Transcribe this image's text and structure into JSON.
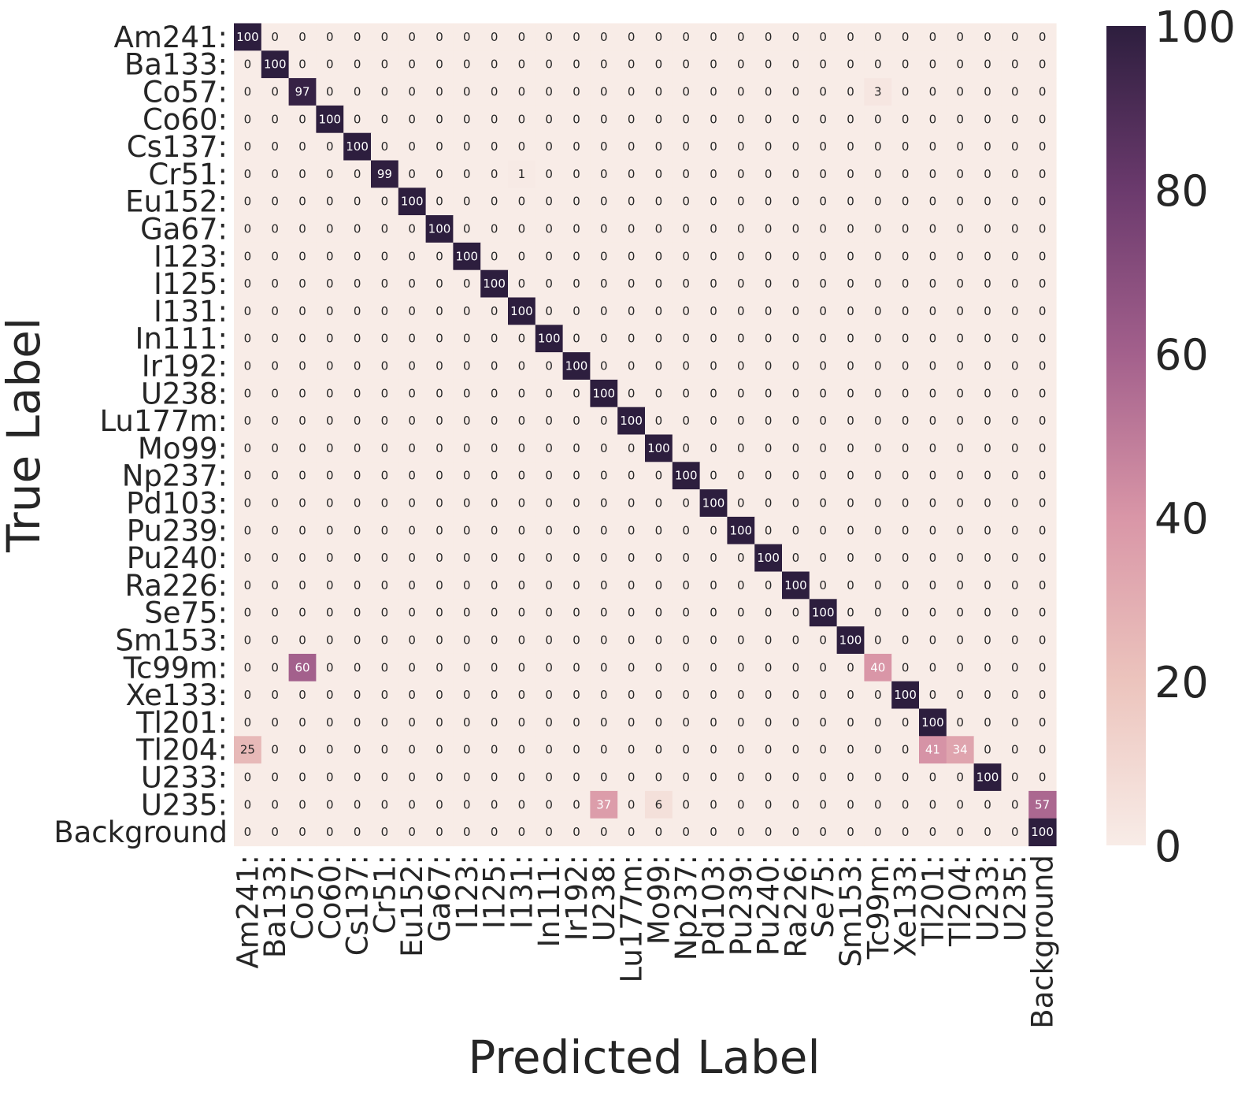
{
  "chart_data": {
    "type": "heatmap",
    "xlabel": "Predicted Label",
    "ylabel": "True Label",
    "row_labels": [
      "Am241:",
      "Ba133:",
      "Co57:",
      "Co60:",
      "Cs137:",
      "Cr51:",
      "Eu152:",
      "Ga67:",
      "I123:",
      "I125:",
      "I131:",
      "In111:",
      "Ir192:",
      "U238:",
      "Lu177m:",
      "Mo99:",
      "Np237:",
      "Pd103:",
      "Pu239:",
      "Pu240:",
      "Ra226:",
      "Se75:",
      "Sm153:",
      "Tc99m:",
      "Xe133:",
      "Tl201:",
      "Tl204:",
      "U233:",
      "U235:",
      "Background"
    ],
    "col_labels": [
      "Am241:",
      "Ba133:",
      "Co57:",
      "Co60:",
      "Cs137:",
      "Cr51:",
      "Eu152:",
      "Ga67:",
      "I123:",
      "I125:",
      "I131:",
      "In111:",
      "Ir192:",
      "U238:",
      "Lu177m:",
      "Mo99:",
      "Np237:",
      "Pd103:",
      "Pu239:",
      "Pu240:",
      "Ra226:",
      "Se75:",
      "Sm153:",
      "Tc99m:",
      "Xe133:",
      "Tl201:",
      "Tl204:",
      "U233:",
      "U235:",
      "Background"
    ],
    "values": [
      [
        100,
        0,
        0,
        0,
        0,
        0,
        0,
        0,
        0,
        0,
        0,
        0,
        0,
        0,
        0,
        0,
        0,
        0,
        0,
        0,
        0,
        0,
        0,
        0,
        0,
        0,
        0,
        0,
        0,
        0
      ],
      [
        0,
        100,
        0,
        0,
        0,
        0,
        0,
        0,
        0,
        0,
        0,
        0,
        0,
        0,
        0,
        0,
        0,
        0,
        0,
        0,
        0,
        0,
        0,
        0,
        0,
        0,
        0,
        0,
        0,
        0
      ],
      [
        0,
        0,
        97,
        0,
        0,
        0,
        0,
        0,
        0,
        0,
        0,
        0,
        0,
        0,
        0,
        0,
        0,
        0,
        0,
        0,
        0,
        0,
        0,
        3,
        0,
        0,
        0,
        0,
        0,
        0
      ],
      [
        0,
        0,
        0,
        100,
        0,
        0,
        0,
        0,
        0,
        0,
        0,
        0,
        0,
        0,
        0,
        0,
        0,
        0,
        0,
        0,
        0,
        0,
        0,
        0,
        0,
        0,
        0,
        0,
        0,
        0
      ],
      [
        0,
        0,
        0,
        0,
        100,
        0,
        0,
        0,
        0,
        0,
        0,
        0,
        0,
        0,
        0,
        0,
        0,
        0,
        0,
        0,
        0,
        0,
        0,
        0,
        0,
        0,
        0,
        0,
        0,
        0
      ],
      [
        0,
        0,
        0,
        0,
        0,
        99,
        0,
        0,
        0,
        0,
        1,
        0,
        0,
        0,
        0,
        0,
        0,
        0,
        0,
        0,
        0,
        0,
        0,
        0,
        0,
        0,
        0,
        0,
        0,
        0
      ],
      [
        0,
        0,
        0,
        0,
        0,
        0,
        100,
        0,
        0,
        0,
        0,
        0,
        0,
        0,
        0,
        0,
        0,
        0,
        0,
        0,
        0,
        0,
        0,
        0,
        0,
        0,
        0,
        0,
        0,
        0
      ],
      [
        0,
        0,
        0,
        0,
        0,
        0,
        0,
        100,
        0,
        0,
        0,
        0,
        0,
        0,
        0,
        0,
        0,
        0,
        0,
        0,
        0,
        0,
        0,
        0,
        0,
        0,
        0,
        0,
        0,
        0
      ],
      [
        0,
        0,
        0,
        0,
        0,
        0,
        0,
        0,
        100,
        0,
        0,
        0,
        0,
        0,
        0,
        0,
        0,
        0,
        0,
        0,
        0,
        0,
        0,
        0,
        0,
        0,
        0,
        0,
        0,
        0
      ],
      [
        0,
        0,
        0,
        0,
        0,
        0,
        0,
        0,
        0,
        100,
        0,
        0,
        0,
        0,
        0,
        0,
        0,
        0,
        0,
        0,
        0,
        0,
        0,
        0,
        0,
        0,
        0,
        0,
        0,
        0
      ],
      [
        0,
        0,
        0,
        0,
        0,
        0,
        0,
        0,
        0,
        0,
        100,
        0,
        0,
        0,
        0,
        0,
        0,
        0,
        0,
        0,
        0,
        0,
        0,
        0,
        0,
        0,
        0,
        0,
        0,
        0
      ],
      [
        0,
        0,
        0,
        0,
        0,
        0,
        0,
        0,
        0,
        0,
        0,
        100,
        0,
        0,
        0,
        0,
        0,
        0,
        0,
        0,
        0,
        0,
        0,
        0,
        0,
        0,
        0,
        0,
        0,
        0
      ],
      [
        0,
        0,
        0,
        0,
        0,
        0,
        0,
        0,
        0,
        0,
        0,
        0,
        100,
        0,
        0,
        0,
        0,
        0,
        0,
        0,
        0,
        0,
        0,
        0,
        0,
        0,
        0,
        0,
        0,
        0
      ],
      [
        0,
        0,
        0,
        0,
        0,
        0,
        0,
        0,
        0,
        0,
        0,
        0,
        0,
        100,
        0,
        0,
        0,
        0,
        0,
        0,
        0,
        0,
        0,
        0,
        0,
        0,
        0,
        0,
        0,
        0
      ],
      [
        0,
        0,
        0,
        0,
        0,
        0,
        0,
        0,
        0,
        0,
        0,
        0,
        0,
        0,
        100,
        0,
        0,
        0,
        0,
        0,
        0,
        0,
        0,
        0,
        0,
        0,
        0,
        0,
        0,
        0
      ],
      [
        0,
        0,
        0,
        0,
        0,
        0,
        0,
        0,
        0,
        0,
        0,
        0,
        0,
        0,
        0,
        100,
        0,
        0,
        0,
        0,
        0,
        0,
        0,
        0,
        0,
        0,
        0,
        0,
        0,
        0
      ],
      [
        0,
        0,
        0,
        0,
        0,
        0,
        0,
        0,
        0,
        0,
        0,
        0,
        0,
        0,
        0,
        0,
        100,
        0,
        0,
        0,
        0,
        0,
        0,
        0,
        0,
        0,
        0,
        0,
        0,
        0
      ],
      [
        0,
        0,
        0,
        0,
        0,
        0,
        0,
        0,
        0,
        0,
        0,
        0,
        0,
        0,
        0,
        0,
        0,
        100,
        0,
        0,
        0,
        0,
        0,
        0,
        0,
        0,
        0,
        0,
        0,
        0
      ],
      [
        0,
        0,
        0,
        0,
        0,
        0,
        0,
        0,
        0,
        0,
        0,
        0,
        0,
        0,
        0,
        0,
        0,
        0,
        100,
        0,
        0,
        0,
        0,
        0,
        0,
        0,
        0,
        0,
        0,
        0
      ],
      [
        0,
        0,
        0,
        0,
        0,
        0,
        0,
        0,
        0,
        0,
        0,
        0,
        0,
        0,
        0,
        0,
        0,
        0,
        0,
        100,
        0,
        0,
        0,
        0,
        0,
        0,
        0,
        0,
        0,
        0
      ],
      [
        0,
        0,
        0,
        0,
        0,
        0,
        0,
        0,
        0,
        0,
        0,
        0,
        0,
        0,
        0,
        0,
        0,
        0,
        0,
        0,
        100,
        0,
        0,
        0,
        0,
        0,
        0,
        0,
        0,
        0
      ],
      [
        0,
        0,
        0,
        0,
        0,
        0,
        0,
        0,
        0,
        0,
        0,
        0,
        0,
        0,
        0,
        0,
        0,
        0,
        0,
        0,
        0,
        100,
        0,
        0,
        0,
        0,
        0,
        0,
        0,
        0
      ],
      [
        0,
        0,
        0,
        0,
        0,
        0,
        0,
        0,
        0,
        0,
        0,
        0,
        0,
        0,
        0,
        0,
        0,
        0,
        0,
        0,
        0,
        0,
        100,
        0,
        0,
        0,
        0,
        0,
        0,
        0
      ],
      [
        0,
        0,
        60,
        0,
        0,
        0,
        0,
        0,
        0,
        0,
        0,
        0,
        0,
        0,
        0,
        0,
        0,
        0,
        0,
        0,
        0,
        0,
        0,
        40,
        0,
        0,
        0,
        0,
        0,
        0
      ],
      [
        0,
        0,
        0,
        0,
        0,
        0,
        0,
        0,
        0,
        0,
        0,
        0,
        0,
        0,
        0,
        0,
        0,
        0,
        0,
        0,
        0,
        0,
        0,
        0,
        100,
        0,
        0,
        0,
        0,
        0
      ],
      [
        0,
        0,
        0,
        0,
        0,
        0,
        0,
        0,
        0,
        0,
        0,
        0,
        0,
        0,
        0,
        0,
        0,
        0,
        0,
        0,
        0,
        0,
        0,
        0,
        0,
        100,
        0,
        0,
        0,
        0
      ],
      [
        25,
        0,
        0,
        0,
        0,
        0,
        0,
        0,
        0,
        0,
        0,
        0,
        0,
        0,
        0,
        0,
        0,
        0,
        0,
        0,
        0,
        0,
        0,
        0,
        0,
        41,
        34,
        0,
        0,
        0
      ],
      [
        0,
        0,
        0,
        0,
        0,
        0,
        0,
        0,
        0,
        0,
        0,
        0,
        0,
        0,
        0,
        0,
        0,
        0,
        0,
        0,
        0,
        0,
        0,
        0,
        0,
        0,
        0,
        100,
        0,
        0
      ],
      [
        0,
        0,
        0,
        0,
        0,
        0,
        0,
        0,
        0,
        0,
        0,
        0,
        0,
        37,
        0,
        6,
        0,
        0,
        0,
        0,
        0,
        0,
        0,
        0,
        0,
        0,
        0,
        0,
        0,
        57
      ],
      [
        0,
        0,
        0,
        0,
        0,
        0,
        0,
        0,
        0,
        0,
        0,
        0,
        0,
        0,
        0,
        0,
        0,
        0,
        0,
        0,
        0,
        0,
        0,
        0,
        0,
        0,
        0,
        0,
        0,
        100
      ]
    ],
    "vmin": 0,
    "vmax": 100,
    "colorbar_ticks": [
      0,
      20,
      40,
      60,
      80,
      100
    ],
    "colormap": [
      "#f8ece7",
      "#ecc4bd",
      "#d996a7",
      "#a3608c",
      "#6b3a6d",
      "#2d1e3e"
    ],
    "grid": false
  }
}
